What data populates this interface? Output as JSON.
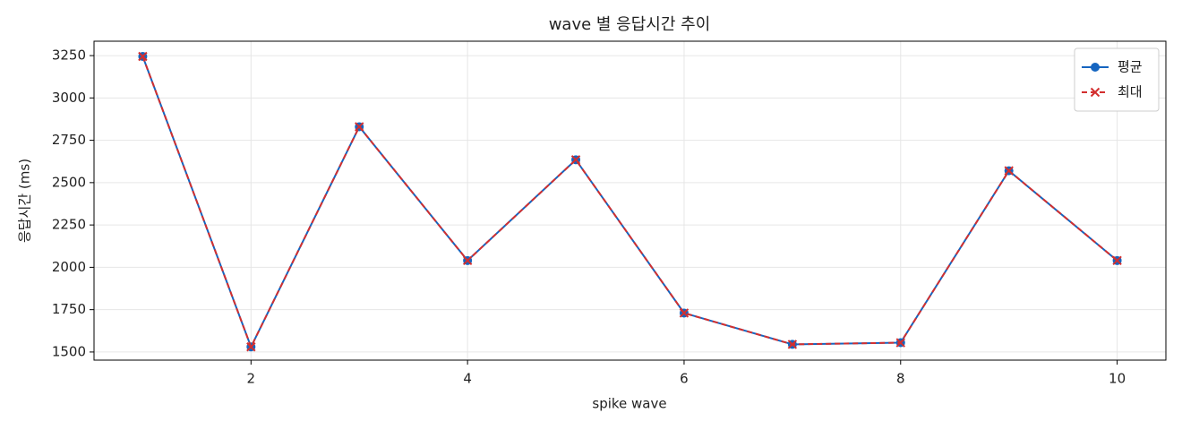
{
  "chart_data": {
    "type": "line",
    "title": "wave 별 응답시간 추이",
    "x_label": "spike wave",
    "y_label": "응답시간 (ms)",
    "x": [
      1,
      2,
      3,
      4,
      5,
      6,
      7,
      8,
      9,
      10
    ],
    "series": [
      {
        "name": "평균",
        "color": "#1565c0",
        "marker": "circle",
        "dash": false,
        "values": [
          3245,
          1530,
          2830,
          2040,
          2635,
          1730,
          1545,
          1555,
          2570,
          2040
        ]
      },
      {
        "name": "최대",
        "color": "#d32f2f",
        "marker": "x",
        "dash": true,
        "values": [
          3245,
          1530,
          2830,
          2040,
          2635,
          1730,
          1545,
          1555,
          2570,
          2040
        ]
      }
    ],
    "xlim": [
      0.55,
      10.45
    ],
    "xticks": [
      2,
      4,
      6,
      8,
      10
    ],
    "ylim": [
      1452,
      3335
    ],
    "yticks": [
      1500,
      1750,
      2000,
      2250,
      2500,
      2750,
      3000,
      3250
    ],
    "grid": true,
    "legend": "upper-right"
  }
}
